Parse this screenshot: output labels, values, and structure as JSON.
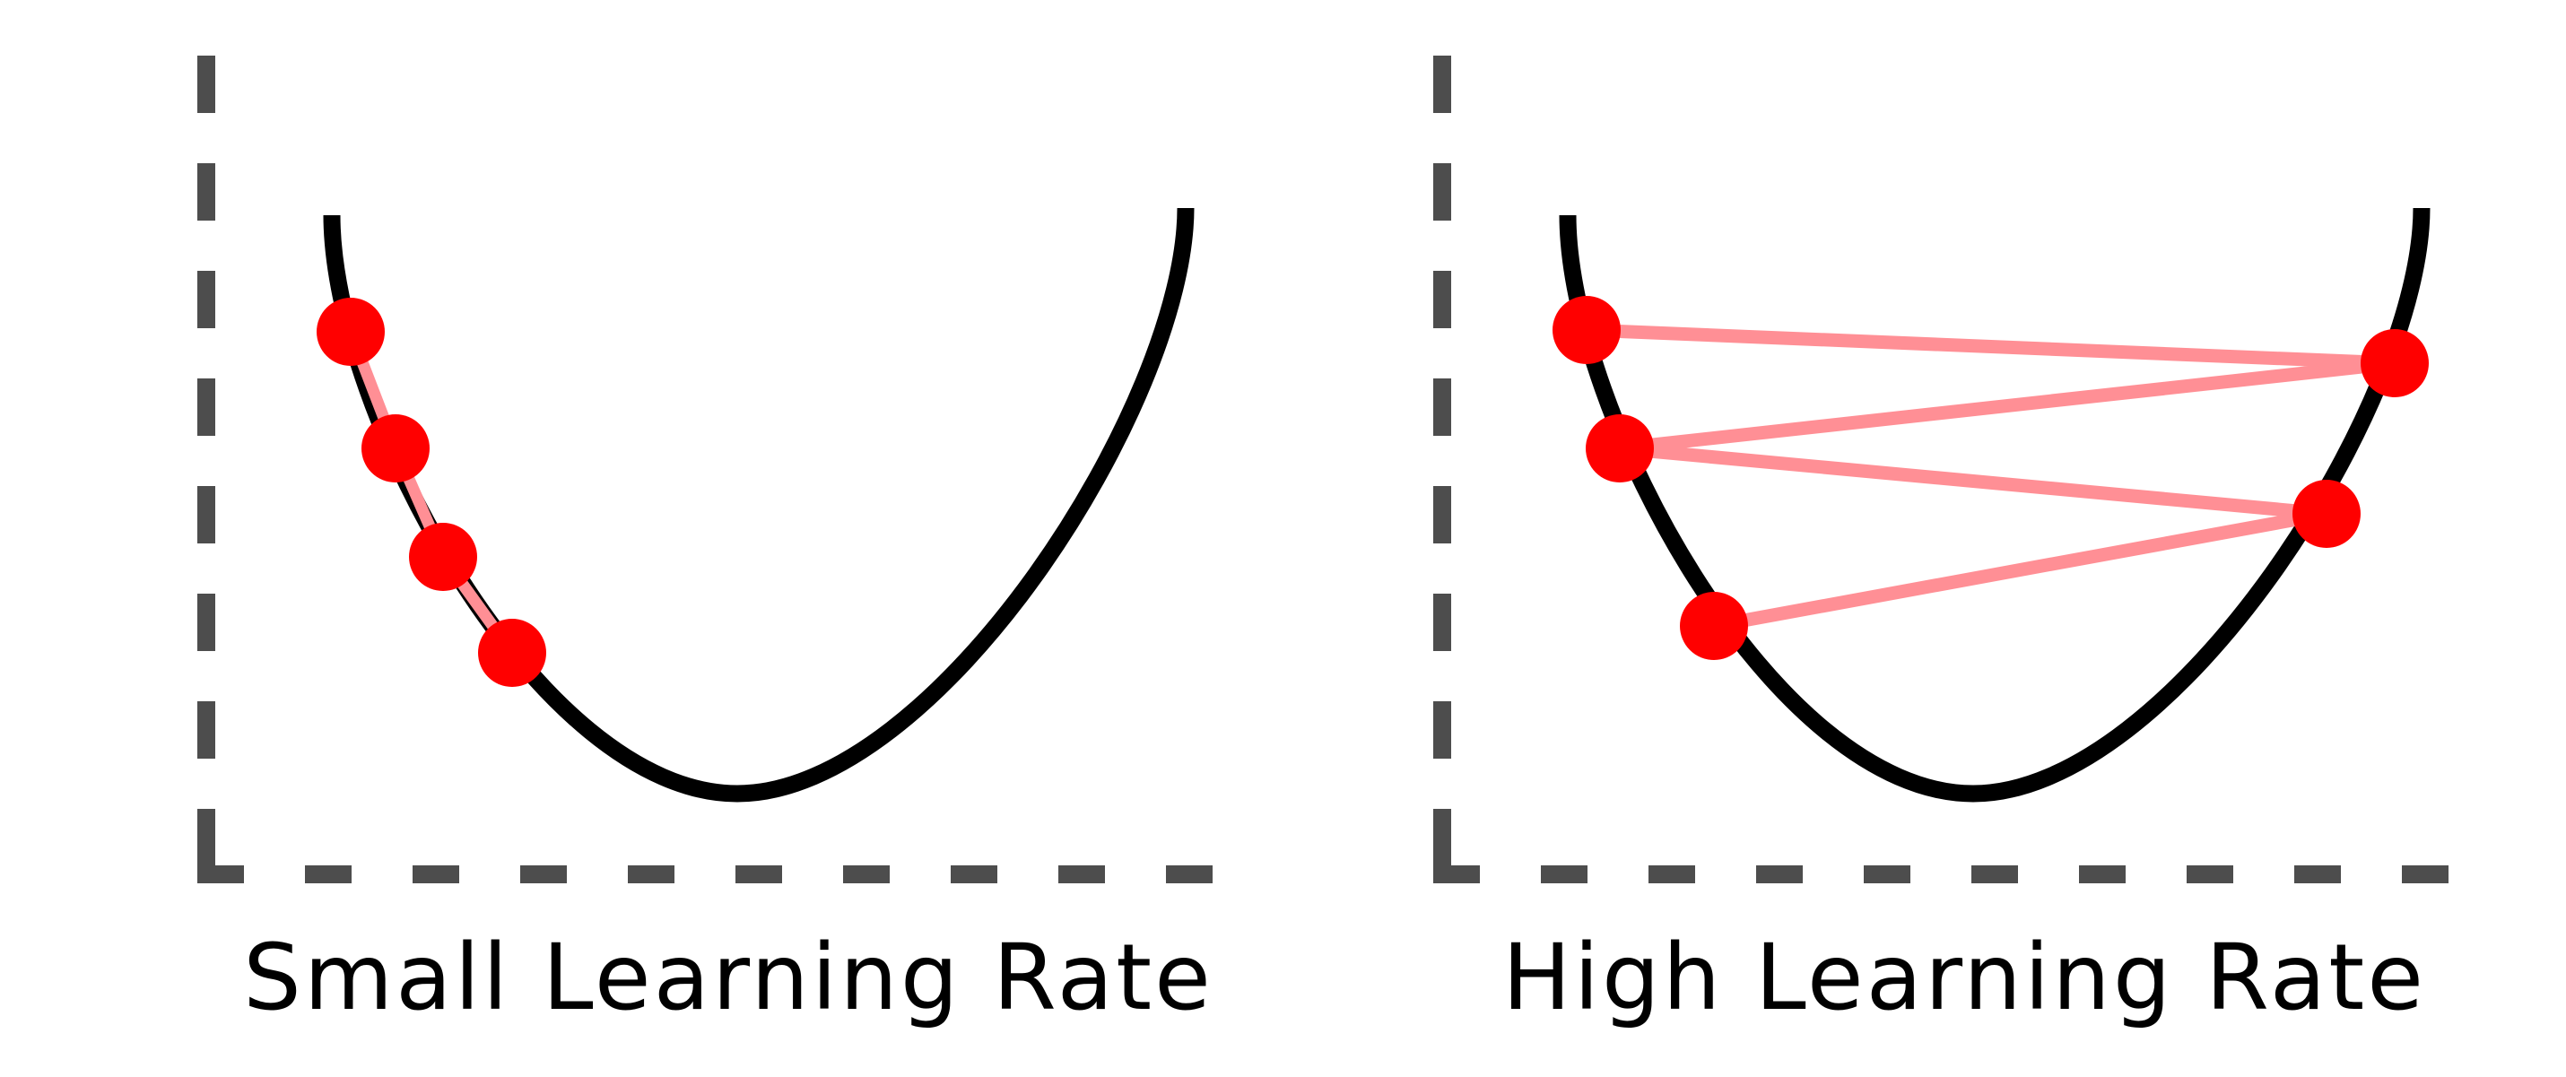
{
  "panels": [
    {
      "caption": "Small Learning Rate",
      "step_count": 4
    },
    {
      "caption": "High Learning Rate",
      "step_count": 5
    }
  ],
  "colors": {
    "axis": "#4d4d4d",
    "curve": "#000000",
    "point": "#ff0000",
    "step_path": "#ff8f95",
    "caption": "#000000"
  },
  "icons": {
    "point": "red-dot",
    "axis": "dashed-axis"
  }
}
